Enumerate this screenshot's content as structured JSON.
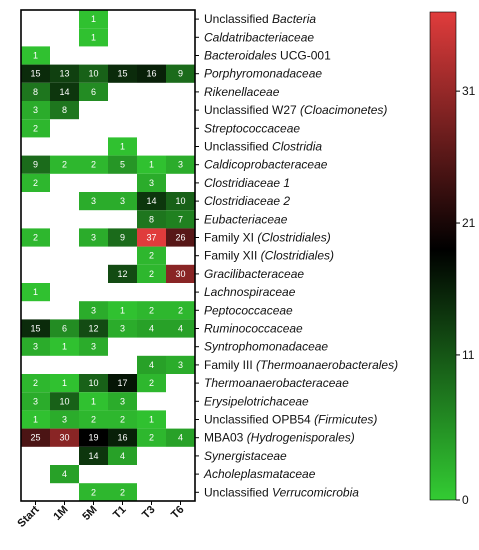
{
  "chart_data": {
    "type": "heatmap",
    "columns": [
      "Start",
      "1M",
      "5M",
      "T1",
      "T3",
      "T6"
    ],
    "rows": [
      {
        "parts": [
          {
            "t": "Unclassified ",
            "i": false
          },
          {
            "t": "Bacteria",
            "i": true
          }
        ],
        "values": [
          null,
          null,
          1,
          null,
          null,
          null
        ]
      },
      {
        "parts": [
          {
            "t": "Caldatribacteriaceae",
            "i": true
          }
        ],
        "values": [
          null,
          null,
          1,
          null,
          null,
          null
        ]
      },
      {
        "parts": [
          {
            "t": "Bacteroidales",
            "i": true
          },
          {
            "t": " UCG-001",
            "i": false
          }
        ],
        "values": [
          1,
          null,
          null,
          null,
          null,
          null
        ]
      },
      {
        "parts": [
          {
            "t": "Porphyromonadaceae",
            "i": true
          }
        ],
        "values": [
          15,
          13,
          10,
          15,
          16,
          9
        ]
      },
      {
        "parts": [
          {
            "t": "Rikenellaceae",
            "i": true
          }
        ],
        "values": [
          8,
          14,
          6,
          null,
          null,
          null
        ]
      },
      {
        "parts": [
          {
            "t": "Unclassified W27 ",
            "i": false
          },
          {
            "t": "(Cloacimonetes)",
            "i": true
          }
        ],
        "values": [
          3,
          8,
          null,
          null,
          null,
          null
        ]
      },
      {
        "parts": [
          {
            "t": "Streptococcaceae",
            "i": true
          }
        ],
        "values": [
          2,
          null,
          null,
          null,
          null,
          null
        ]
      },
      {
        "parts": [
          {
            "t": "Unclassified ",
            "i": false
          },
          {
            "t": "Clostridia",
            "i": true
          }
        ],
        "values": [
          null,
          null,
          null,
          1,
          null,
          null
        ]
      },
      {
        "parts": [
          {
            "t": "Caldicoprobacteraceae",
            "i": true
          }
        ],
        "values": [
          9,
          2,
          2,
          5,
          1,
          3
        ]
      },
      {
        "parts": [
          {
            "t": "Clostridiaceae 1",
            "i": true
          }
        ],
        "values": [
          2,
          null,
          null,
          null,
          3,
          null
        ]
      },
      {
        "parts": [
          {
            "t": "Clostridiaceae 2",
            "i": true
          }
        ],
        "values": [
          null,
          null,
          3,
          3,
          14,
          10
        ]
      },
      {
        "parts": [
          {
            "t": "Eubacteriaceae",
            "i": true
          }
        ],
        "values": [
          null,
          null,
          null,
          null,
          8,
          7
        ]
      },
      {
        "parts": [
          {
            "t": "Family XI ",
            "i": false
          },
          {
            "t": "(Clostridiales)",
            "i": true
          }
        ],
        "values": [
          2,
          null,
          3,
          9,
          37,
          26
        ]
      },
      {
        "parts": [
          {
            "t": "Family XII ",
            "i": false
          },
          {
            "t": "(Clostridiales)",
            "i": true
          }
        ],
        "values": [
          null,
          null,
          null,
          null,
          2,
          null
        ]
      },
      {
        "parts": [
          {
            "t": "Gracilibacteraceae",
            "i": true
          }
        ],
        "values": [
          null,
          null,
          null,
          12,
          2,
          30
        ]
      },
      {
        "parts": [
          {
            "t": "Lachnospiraceae",
            "i": true
          }
        ],
        "values": [
          1,
          null,
          null,
          null,
          null,
          null
        ]
      },
      {
        "parts": [
          {
            "t": "Peptococcaceae",
            "i": true
          }
        ],
        "values": [
          null,
          null,
          3,
          1,
          2,
          2
        ]
      },
      {
        "parts": [
          {
            "t": "Ruminococcaceae",
            "i": true
          }
        ],
        "values": [
          15,
          6,
          12,
          3,
          4,
          4
        ]
      },
      {
        "parts": [
          {
            "t": "Syntrophomonadaceae",
            "i": true
          }
        ],
        "values": [
          3,
          1,
          3,
          null,
          null,
          null
        ]
      },
      {
        "parts": [
          {
            "t": "Family III ",
            "i": false
          },
          {
            "t": "(Thermoanaerobacterales)",
            "i": true
          }
        ],
        "values": [
          null,
          null,
          null,
          null,
          4,
          3
        ]
      },
      {
        "parts": [
          {
            "t": "Thermoanaerobacteraceae",
            "i": true
          }
        ],
        "values": [
          2,
          1,
          10,
          17,
          2,
          null
        ]
      },
      {
        "parts": [
          {
            "t": "Erysipelotrichaceae",
            "i": true
          }
        ],
        "values": [
          3,
          10,
          1,
          3,
          null,
          null
        ]
      },
      {
        "parts": [
          {
            "t": "Unclassified OPB54 ",
            "i": false
          },
          {
            "t": "(Firmicutes)",
            "i": true
          }
        ],
        "values": [
          1,
          3,
          2,
          2,
          1,
          null
        ]
      },
      {
        "parts": [
          {
            "t": "MBA03 ",
            "i": false
          },
          {
            "t": "(Hydrogenisporales)",
            "i": true
          }
        ],
        "values": [
          25,
          30,
          19,
          16,
          2,
          4
        ]
      },
      {
        "parts": [
          {
            "t": "Synergistaceae",
            "i": true
          }
        ],
        "values": [
          null,
          null,
          14,
          4,
          null,
          null
        ]
      },
      {
        "parts": [
          {
            "t": "Acholeplasmataceae",
            "i": true
          }
        ],
        "values": [
          null,
          4,
          null,
          null,
          null,
          null
        ]
      },
      {
        "parts": [
          {
            "t": "Unclassified ",
            "i": false
          },
          {
            "t": "Verrucomicrobia",
            "i": true
          }
        ],
        "values": [
          null,
          null,
          2,
          2,
          null,
          null
        ]
      }
    ],
    "colorbar": {
      "range": [
        0,
        37
      ],
      "ticks": [
        0,
        11,
        21,
        31
      ],
      "colors": {
        "low": "#33cc33",
        "mid": "#000000",
        "high": "#e03c3c"
      },
      "midpoint": 19
    }
  }
}
